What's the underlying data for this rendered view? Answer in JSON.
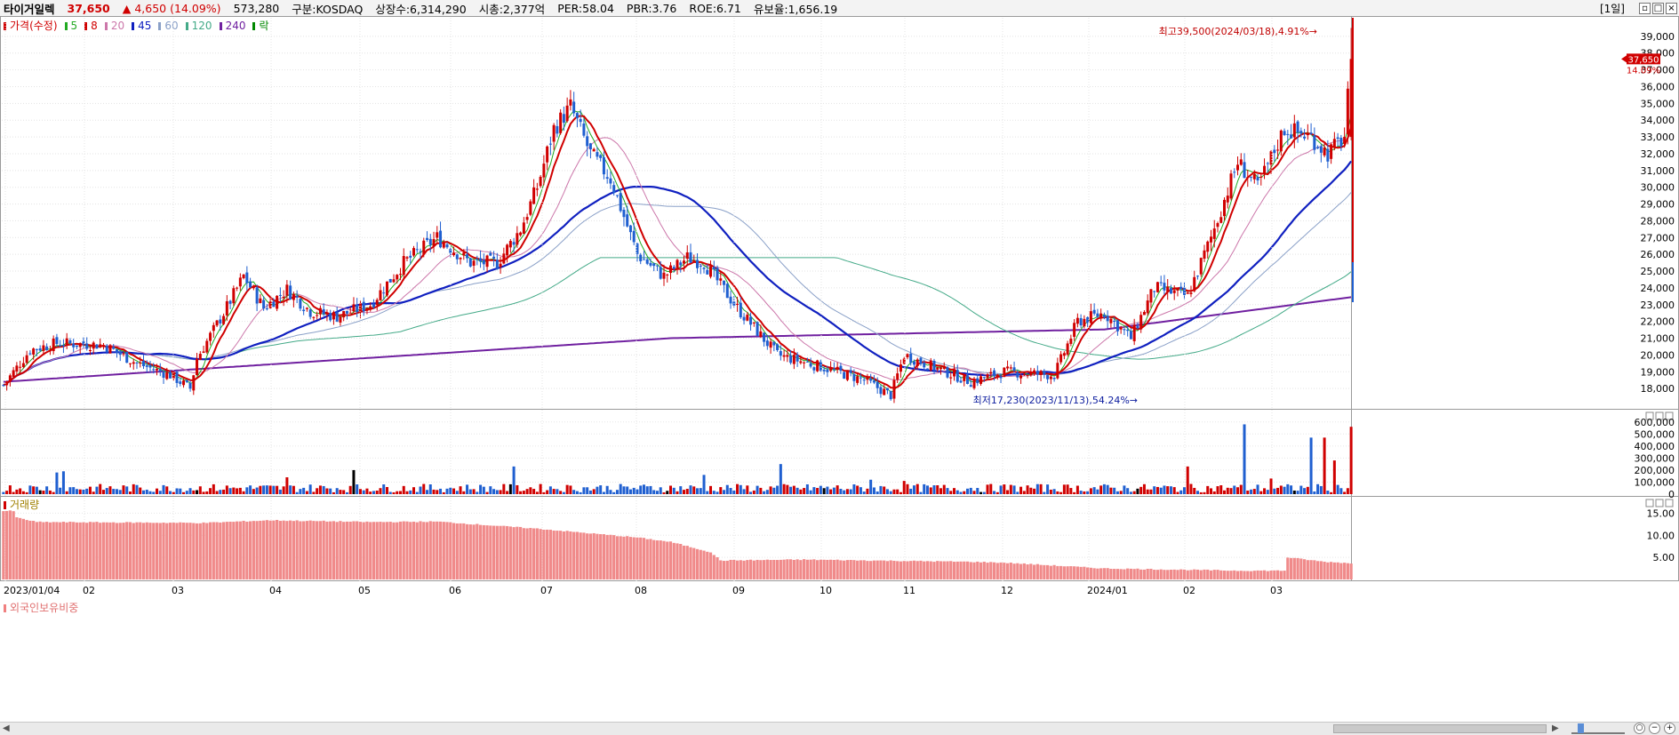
{
  "header": {
    "title": "타이거일렉",
    "price": "37,650",
    "change": "▲ 4,650",
    "change_pct": "(14.09%)",
    "volume": "573,280",
    "market": "구분:KOSDAQ",
    "shares": "상장수:6,314,290",
    "marketcap": "시총:2,377억",
    "per": "PER:58.04",
    "pbr": "PBR:3.76",
    "roe": "ROE:6.71",
    "float": "유보율:1,656.19",
    "period": "[1일]",
    "up_color": "#d00000"
  },
  "price_legend": [
    {
      "label": "가격(수정)",
      "color": "#d00000"
    },
    {
      "label": "5",
      "color": "#22aa22"
    },
    {
      "label": "8",
      "color": "#d00000"
    },
    {
      "label": "20",
      "color": "#cc77aa"
    },
    {
      "label": "45",
      "color": "#1020c0"
    },
    {
      "label": "60",
      "color": "#8aa0c8"
    },
    {
      "label": "120",
      "color": "#44aa88"
    },
    {
      "label": "240",
      "color": "#7020a0"
    },
    {
      "label": "락",
      "color": "#008800"
    }
  ],
  "volume_legend": "거래량",
  "foreign_legend": "외국인보유비중",
  "annotations": {
    "high": "최고39,500(2024/03/18),4.91%→",
    "low": "최저17,230(2023/11/13),54.24%→",
    "current_price": "37,650",
    "current_pct": "14.09%"
  },
  "chart_data": [
    {
      "type": "candlestick",
      "title": "",
      "price_axis": {
        "min": 17000,
        "max": 40000,
        "ticks": [
          18000,
          19000,
          20000,
          21000,
          22000,
          23000,
          24000,
          25000,
          26000,
          27000,
          28000,
          29000,
          30000,
          31000,
          32000,
          33000,
          34000,
          35000,
          36000,
          37000,
          38000,
          39000
        ]
      },
      "x_labels": [
        "2023/01/04",
        "02",
        "03",
        "04",
        "05",
        "06",
        "07",
        "08",
        "09",
        "10",
        "11",
        "12",
        "2024/01",
        "02",
        "03"
      ],
      "close_anchors": [
        [
          0,
          18200
        ],
        [
          8,
          20300
        ],
        [
          16,
          20700
        ],
        [
          30,
          20600
        ],
        [
          40,
          19500
        ],
        [
          50,
          18800
        ],
        [
          56,
          18000
        ],
        [
          58,
          19800
        ],
        [
          66,
          22500
        ],
        [
          72,
          24700
        ],
        [
          78,
          22800
        ],
        [
          85,
          23900
        ],
        [
          92,
          22600
        ],
        [
          100,
          22300
        ],
        [
          110,
          23000
        ],
        [
          120,
          25500
        ],
        [
          130,
          27000
        ],
        [
          140,
          25500
        ],
        [
          148,
          25500
        ],
        [
          155,
          27500
        ],
        [
          160,
          30000
        ],
        [
          165,
          33500
        ],
        [
          170,
          34800
        ],
        [
          176,
          32000
        ],
        [
          182,
          30500
        ],
        [
          190,
          26000
        ],
        [
          198,
          24700
        ],
        [
          205,
          25800
        ],
        [
          210,
          25500
        ],
        [
          220,
          22800
        ],
        [
          232,
          20000
        ],
        [
          245,
          19300
        ],
        [
          258,
          18500
        ],
        [
          266,
          17600
        ],
        [
          270,
          20000
        ],
        [
          276,
          19500
        ],
        [
          290,
          18400
        ],
        [
          300,
          19000
        ],
        [
          315,
          18800
        ],
        [
          322,
          22000
        ],
        [
          330,
          22500
        ],
        [
          338,
          21000
        ],
        [
          345,
          24000
        ],
        [
          355,
          23500
        ],
        [
          362,
          27000
        ],
        [
          370,
          31500
        ],
        [
          376,
          30000
        ],
        [
          384,
          33500
        ],
        [
          392,
          33000
        ],
        [
          397,
          32000
        ],
        [
          402,
          33000
        ],
        [
          404,
          37650
        ]
      ],
      "ma_series": [
        "5",
        "8",
        "20",
        "45",
        "60",
        "120",
        "240"
      ]
    },
    {
      "type": "bar",
      "name": "거래량",
      "y_ticks": [
        0,
        100000,
        200000,
        300000,
        400000,
        500000,
        600000
      ],
      "peaks": [
        [
          16,
          180000
        ],
        [
          18,
          190000
        ],
        [
          85,
          140000
        ],
        [
          105,
          200000
        ],
        [
          153,
          230000
        ],
        [
          210,
          160000
        ],
        [
          233,
          250000
        ],
        [
          260,
          120000
        ],
        [
          270,
          110000
        ],
        [
          355,
          230000
        ],
        [
          372,
          580000
        ],
        [
          380,
          130000
        ],
        [
          392,
          470000
        ],
        [
          396,
          470000
        ],
        [
          399,
          280000
        ],
        [
          404,
          560000
        ]
      ]
    },
    {
      "type": "bar",
      "name": "외국인보유비중",
      "y_ticks": [
        5,
        10,
        15
      ],
      "anchors": [
        [
          0,
          15.5
        ],
        [
          3,
          15.5
        ],
        [
          4,
          14.0
        ],
        [
          10,
          13.0
        ],
        [
          60,
          12.8
        ],
        [
          80,
          13.4
        ],
        [
          110,
          13.0
        ],
        [
          130,
          13.1
        ],
        [
          160,
          11.5
        ],
        [
          190,
          9.5
        ],
        [
          200,
          8.5
        ],
        [
          212,
          6.2
        ],
        [
          215,
          4.3
        ],
        [
          240,
          4.5
        ],
        [
          260,
          4.3
        ],
        [
          290,
          4.0
        ],
        [
          300,
          3.8
        ],
        [
          330,
          2.5
        ],
        [
          370,
          2.0
        ],
        [
          384,
          2.0
        ],
        [
          385,
          5.0
        ],
        [
          396,
          4.0
        ],
        [
          404,
          3.7
        ]
      ]
    }
  ]
}
